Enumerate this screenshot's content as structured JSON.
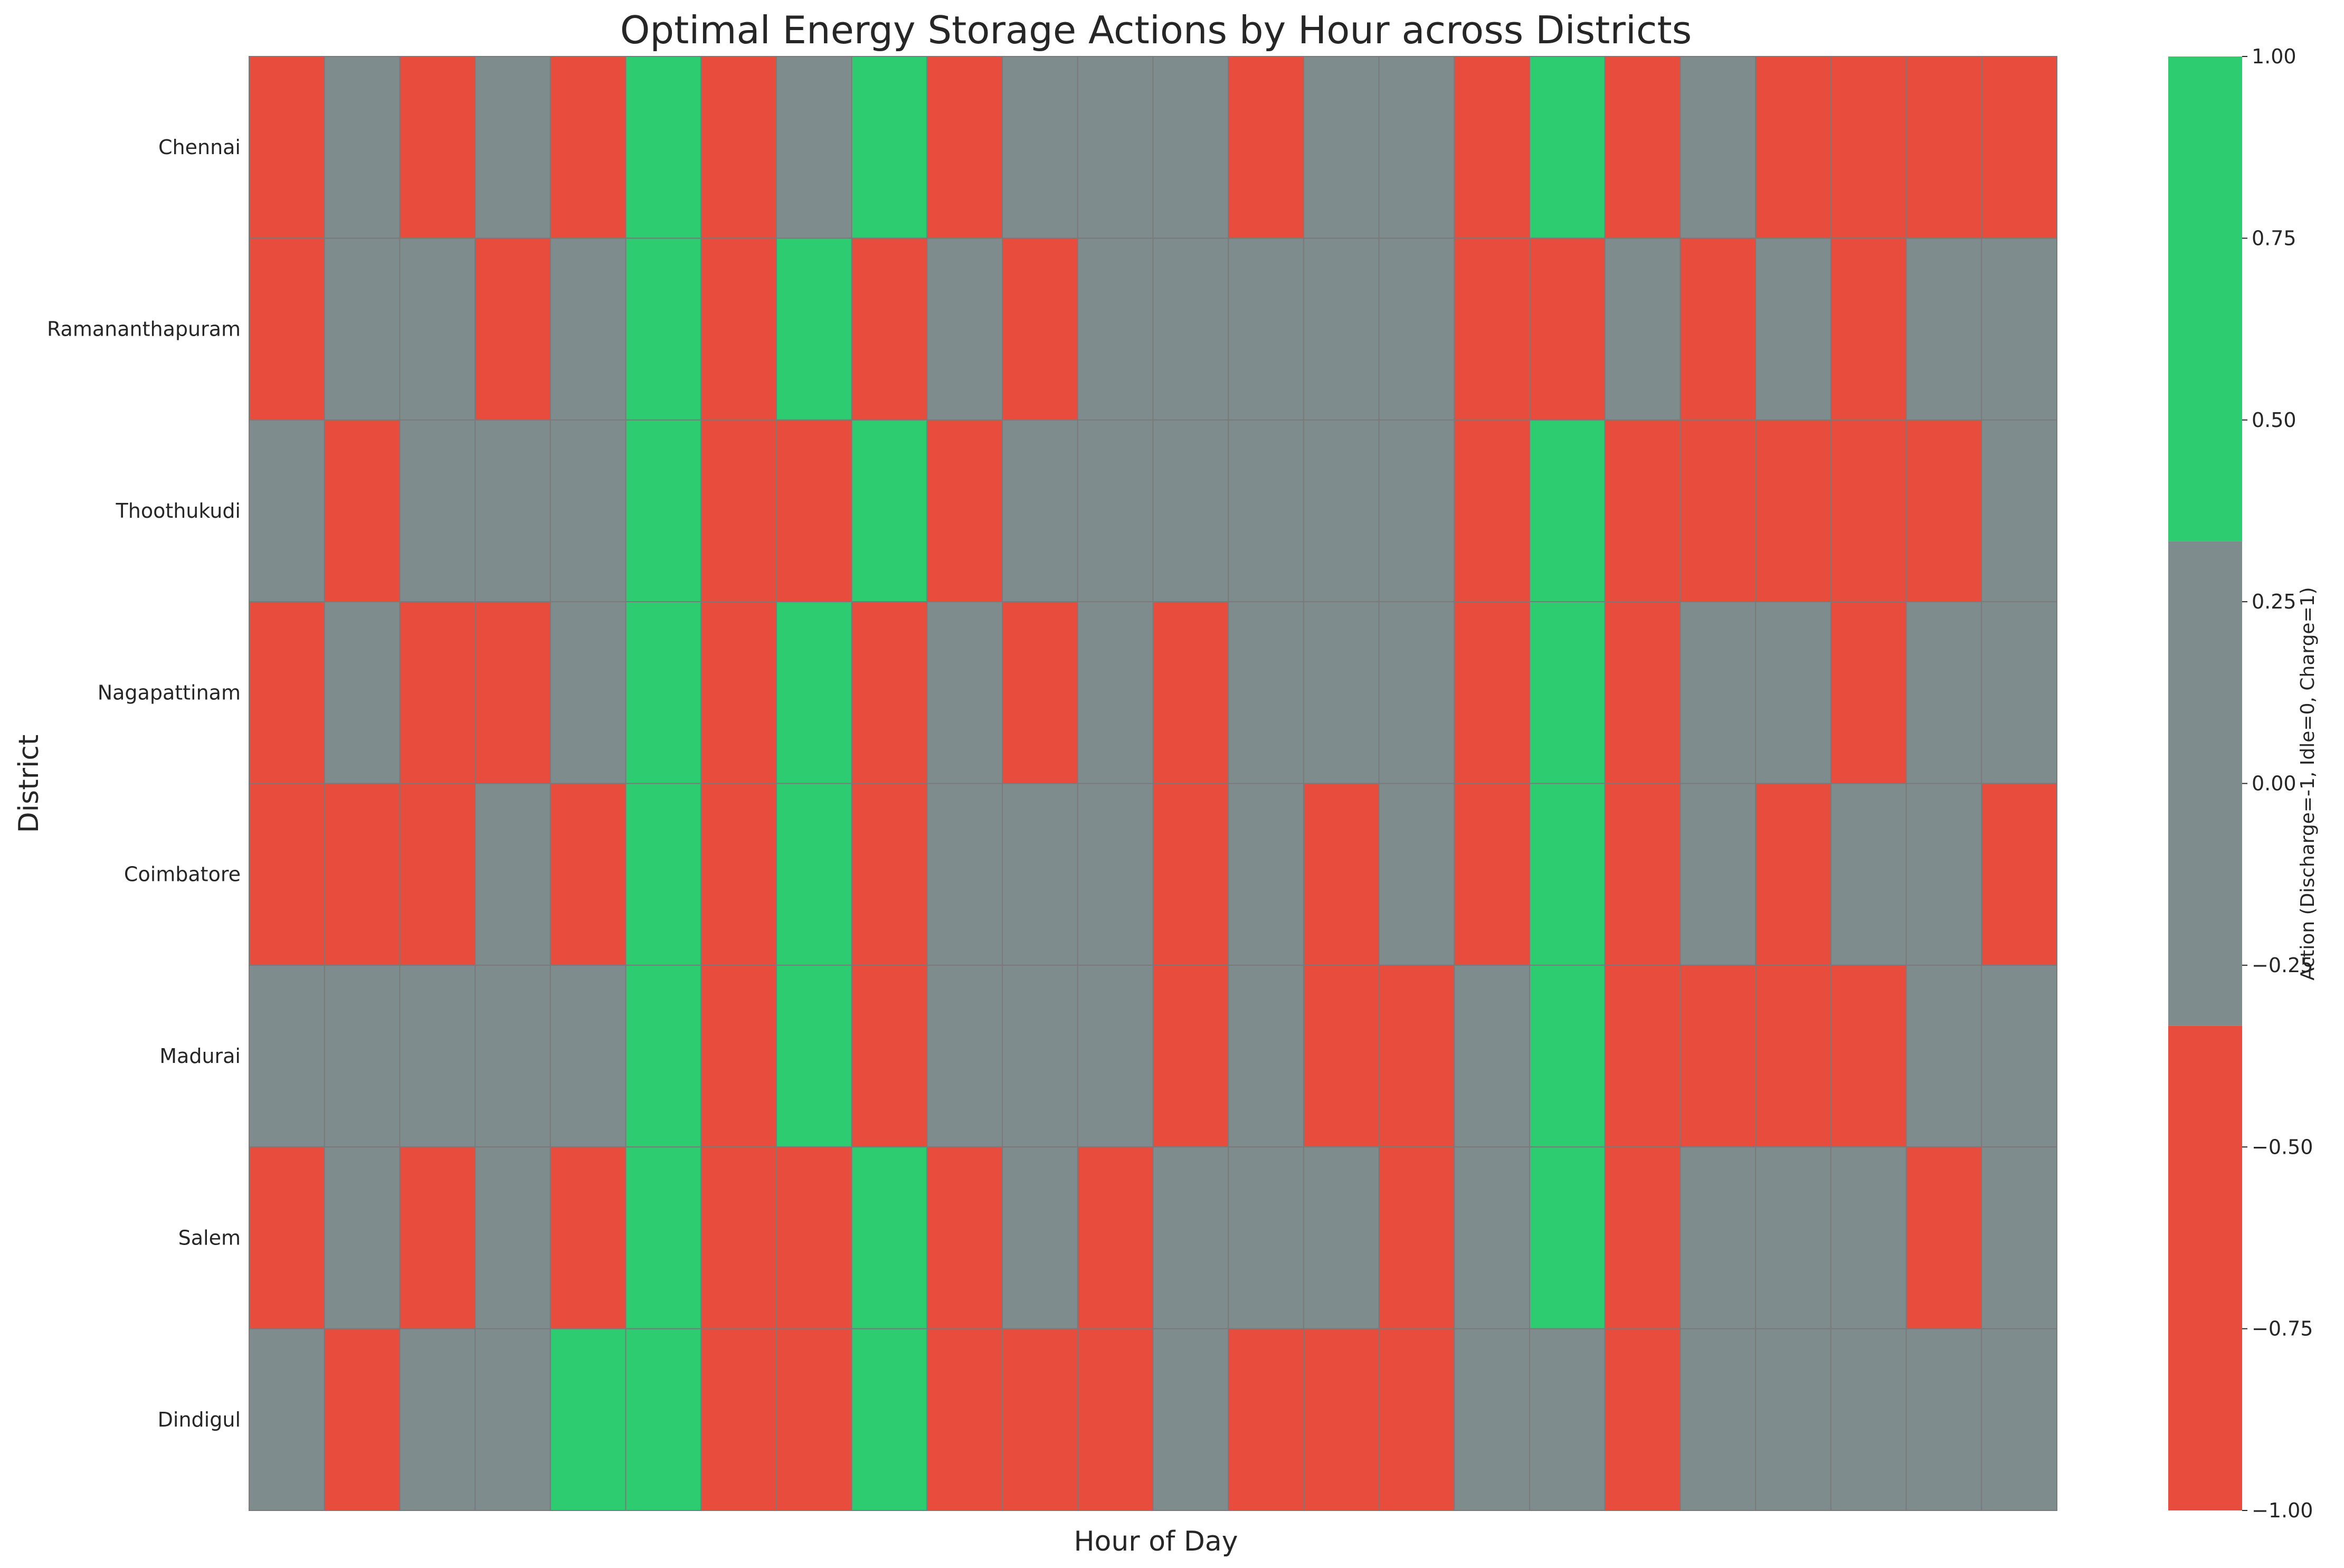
{
  "chart_data": {
    "type": "heatmap",
    "title": "Optimal Energy Storage Actions by Hour across Districts",
    "xlabel": "Hour of Day",
    "ylabel": "District",
    "rows": [
      "Chennai",
      "Ramananthapuram",
      "Thoothukudi",
      "Nagapattinam",
      "Coimbatore",
      "Madurai",
      "Salem",
      "Dindigul"
    ],
    "columns": 24,
    "x_tick_labels_shown": false,
    "values": [
      [
        -1,
        0,
        -1,
        0,
        -1,
        1,
        -1,
        0,
        1,
        -1,
        0,
        0,
        0,
        -1,
        0,
        0,
        -1,
        1,
        -1,
        0,
        -1,
        -1,
        -1,
        -1
      ],
      [
        -1,
        0,
        0,
        -1,
        0,
        1,
        -1,
        1,
        -1,
        0,
        -1,
        0,
        0,
        0,
        0,
        0,
        -1,
        -1,
        0,
        -1,
        0,
        -1,
        0,
        0
      ],
      [
        0,
        -1,
        0,
        0,
        0,
        1,
        -1,
        -1,
        1,
        -1,
        0,
        0,
        0,
        0,
        0,
        0,
        -1,
        1,
        -1,
        -1,
        -1,
        -1,
        -1,
        0
      ],
      [
        -1,
        0,
        -1,
        -1,
        0,
        1,
        -1,
        1,
        -1,
        0,
        -1,
        0,
        -1,
        0,
        0,
        0,
        -1,
        1,
        -1,
        0,
        0,
        -1,
        0,
        0
      ],
      [
        -1,
        -1,
        -1,
        0,
        -1,
        1,
        -1,
        1,
        -1,
        0,
        0,
        0,
        -1,
        0,
        -1,
        0,
        -1,
        1,
        -1,
        0,
        -1,
        0,
        0,
        -1
      ],
      [
        0,
        0,
        0,
        0,
        0,
        1,
        -1,
        1,
        -1,
        0,
        0,
        0,
        -1,
        0,
        -1,
        -1,
        0,
        1,
        -1,
        -1,
        -1,
        -1,
        0,
        0
      ],
      [
        -1,
        0,
        -1,
        0,
        -1,
        1,
        -1,
        -1,
        1,
        -1,
        0,
        -1,
        0,
        0,
        0,
        -1,
        0,
        1,
        -1,
        0,
        0,
        0,
        -1,
        0
      ],
      [
        0,
        -1,
        0,
        0,
        1,
        1,
        -1,
        -1,
        1,
        -1,
        -1,
        -1,
        0,
        -1,
        -1,
        -1,
        0,
        0,
        -1,
        0,
        0,
        0,
        0,
        0
      ]
    ],
    "colorbar": {
      "label": "Action (Discharge=-1, Idle=0, Charge=1)",
      "range": [
        -1.0,
        1.0
      ],
      "ticks": [
        "1.00",
        "0.75",
        "0.50",
        "0.25",
        "0.00",
        "−0.25",
        "−0.50",
        "−0.75",
        "−1.00"
      ],
      "colors": {
        "discharge": "#e74c3c",
        "idle": "#7f8c8d",
        "charge": "#2ecc71"
      }
    },
    "grid": false
  }
}
